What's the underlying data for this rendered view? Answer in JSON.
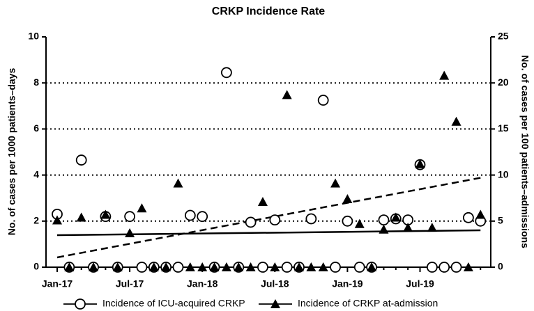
{
  "chart_data": {
    "type": "scatter",
    "title": "CRKP Incidence Rate",
    "ylabel": "No. of cases per 1000 patients–days",
    "y2label": "No. of cases per 100 patients–admissions",
    "categories": [
      "Jan-17",
      null,
      null,
      null,
      null,
      null,
      "Jul-17",
      null,
      null,
      null,
      null,
      null,
      "Jan-18",
      null,
      null,
      null,
      null,
      null,
      "Jul-18",
      null,
      null,
      null,
      null,
      null,
      "Jan-19",
      null,
      null,
      null,
      null,
      null,
      "Jul-19",
      null,
      null,
      null,
      null,
      null
    ],
    "ylim": [
      0,
      10
    ],
    "yticks": [
      0,
      2,
      4,
      6,
      8,
      10
    ],
    "y2lim": [
      0,
      25
    ],
    "y2ticks": [
      0,
      5,
      10,
      15,
      20,
      25
    ],
    "grid": true,
    "legend": "bottom",
    "series": [
      {
        "name": "Incidence of ICU-acquired CRKP",
        "marker": "circle",
        "color": "#000000",
        "axis": "y",
        "values": [
          2.3,
          0,
          4.65,
          0,
          2.2,
          0,
          2.2,
          0,
          0,
          0,
          0,
          2.25,
          2.2,
          0,
          8.45,
          0,
          1.95,
          0,
          2.05,
          0,
          0,
          2.1,
          7.25,
          0,
          2.0,
          0,
          0,
          2.05,
          2.1,
          2.05,
          4.45,
          0,
          0,
          0,
          2.15,
          2.0
        ]
      },
      {
        "name": "Incidence of CRKP at-admission",
        "marker": "triangle",
        "color": "#000000",
        "axis": "y2",
        "values": [
          5.1,
          0,
          5.4,
          0,
          5.7,
          0,
          3.7,
          6.4,
          0,
          0,
          9.1,
          0,
          0,
          0,
          0,
          0,
          0,
          7.1,
          0,
          18.7,
          0,
          0,
          0,
          9.1,
          7.4,
          4.7,
          0,
          4.1,
          5.4,
          4.3,
          11.2,
          4.3,
          20.8,
          15.8,
          0,
          5.7
        ]
      }
    ],
    "trendlines": [
      {
        "axis": "y",
        "dash": false,
        "values": [
          1.39,
          1.6
        ]
      },
      {
        "axis": "y2",
        "dash": true,
        "values": [
          1.06,
          9.7
        ]
      }
    ]
  }
}
